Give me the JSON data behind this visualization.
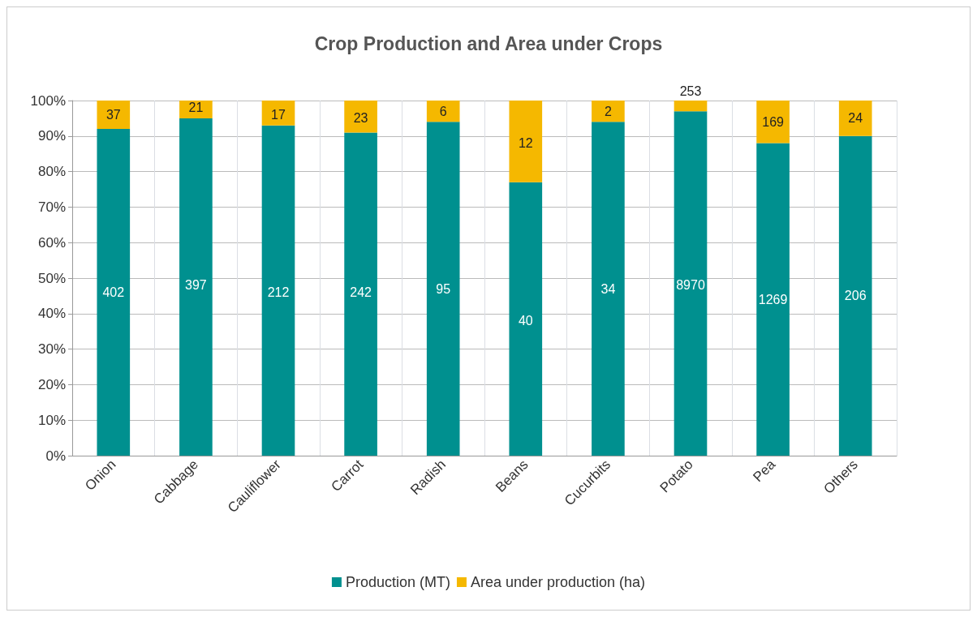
{
  "chart_data": {
    "type": "bar",
    "title": "Crop Production and Area under Crops",
    "categories": [
      "Onion",
      "Cabbage",
      "Cauliflower",
      "Carrot",
      "Radish",
      "Beans",
      "Cucurbits",
      "Potato",
      "Pea",
      "Others"
    ],
    "series": [
      {
        "name": "Production (MT)",
        "color": "#00908f",
        "values": [
          92,
          95,
          93,
          91,
          94,
          77,
          94,
          97,
          88,
          90
        ]
      },
      {
        "name": "Area under production (ha)",
        "color": "#f5b800",
        "values": [
          8,
          5,
          7,
          9,
          6,
          23,
          6,
          3,
          12,
          10
        ]
      }
    ],
    "annotations": [
      {
        "text": "402",
        "x": "Onion",
        "y": 46
      },
      {
        "text": "37",
        "x": "Onion",
        "y": 96
      },
      {
        "text": "397",
        "x": "Cabbage",
        "y": 48
      },
      {
        "text": "21",
        "x": "Cabbage",
        "y": 98
      },
      {
        "text": "212",
        "x": "Cauliflower",
        "y": 46
      },
      {
        "text": "17",
        "x": "Cauliflower",
        "y": 96
      },
      {
        "text": "242",
        "x": "Carrot",
        "y": 46
      },
      {
        "text": "23",
        "x": "Carrot",
        "y": 95
      },
      {
        "text": "95",
        "x": "Radish",
        "y": 47
      },
      {
        "text": "6",
        "x": "Radish",
        "y": 97
      },
      {
        "text": "40",
        "x": "Beans",
        "y": 38
      },
      {
        "text": "12",
        "x": "Beans",
        "y": 88
      },
      {
        "text": "34",
        "x": "Cucurbits",
        "y": 47
      },
      {
        "text": "2",
        "x": "Cucurbits",
        "y": 97
      },
      {
        "text": "8970",
        "x": "Potato",
        "y": 48
      },
      {
        "text": "253",
        "x": "Potato",
        "y": 100
      },
      {
        "text": "1269",
        "x": "Pea",
        "y": 44
      },
      {
        "text": "169",
        "x": "Pea",
        "y": 94
      },
      {
        "text": "206",
        "x": "Others",
        "y": 45
      },
      {
        "text": "24",
        "x": "Others",
        "y": 95
      }
    ],
    "stacked": true,
    "ylim": [
      0,
      100
    ],
    "yticks": [
      {
        "value": 0,
        "label": "0%"
      },
      {
        "value": 10,
        "label": "10%"
      },
      {
        "value": 20,
        "label": "20%"
      },
      {
        "value": 30,
        "label": "30%"
      },
      {
        "value": 40,
        "label": "40%"
      },
      {
        "value": 50,
        "label": "50%"
      },
      {
        "value": 60,
        "label": "60%"
      },
      {
        "value": 70,
        "label": "70%"
      },
      {
        "value": 80,
        "label": "80%"
      },
      {
        "value": 90,
        "label": "90%"
      },
      {
        "value": 100,
        "label": "100%"
      }
    ],
    "grid": true,
    "legend": "bottom"
  }
}
